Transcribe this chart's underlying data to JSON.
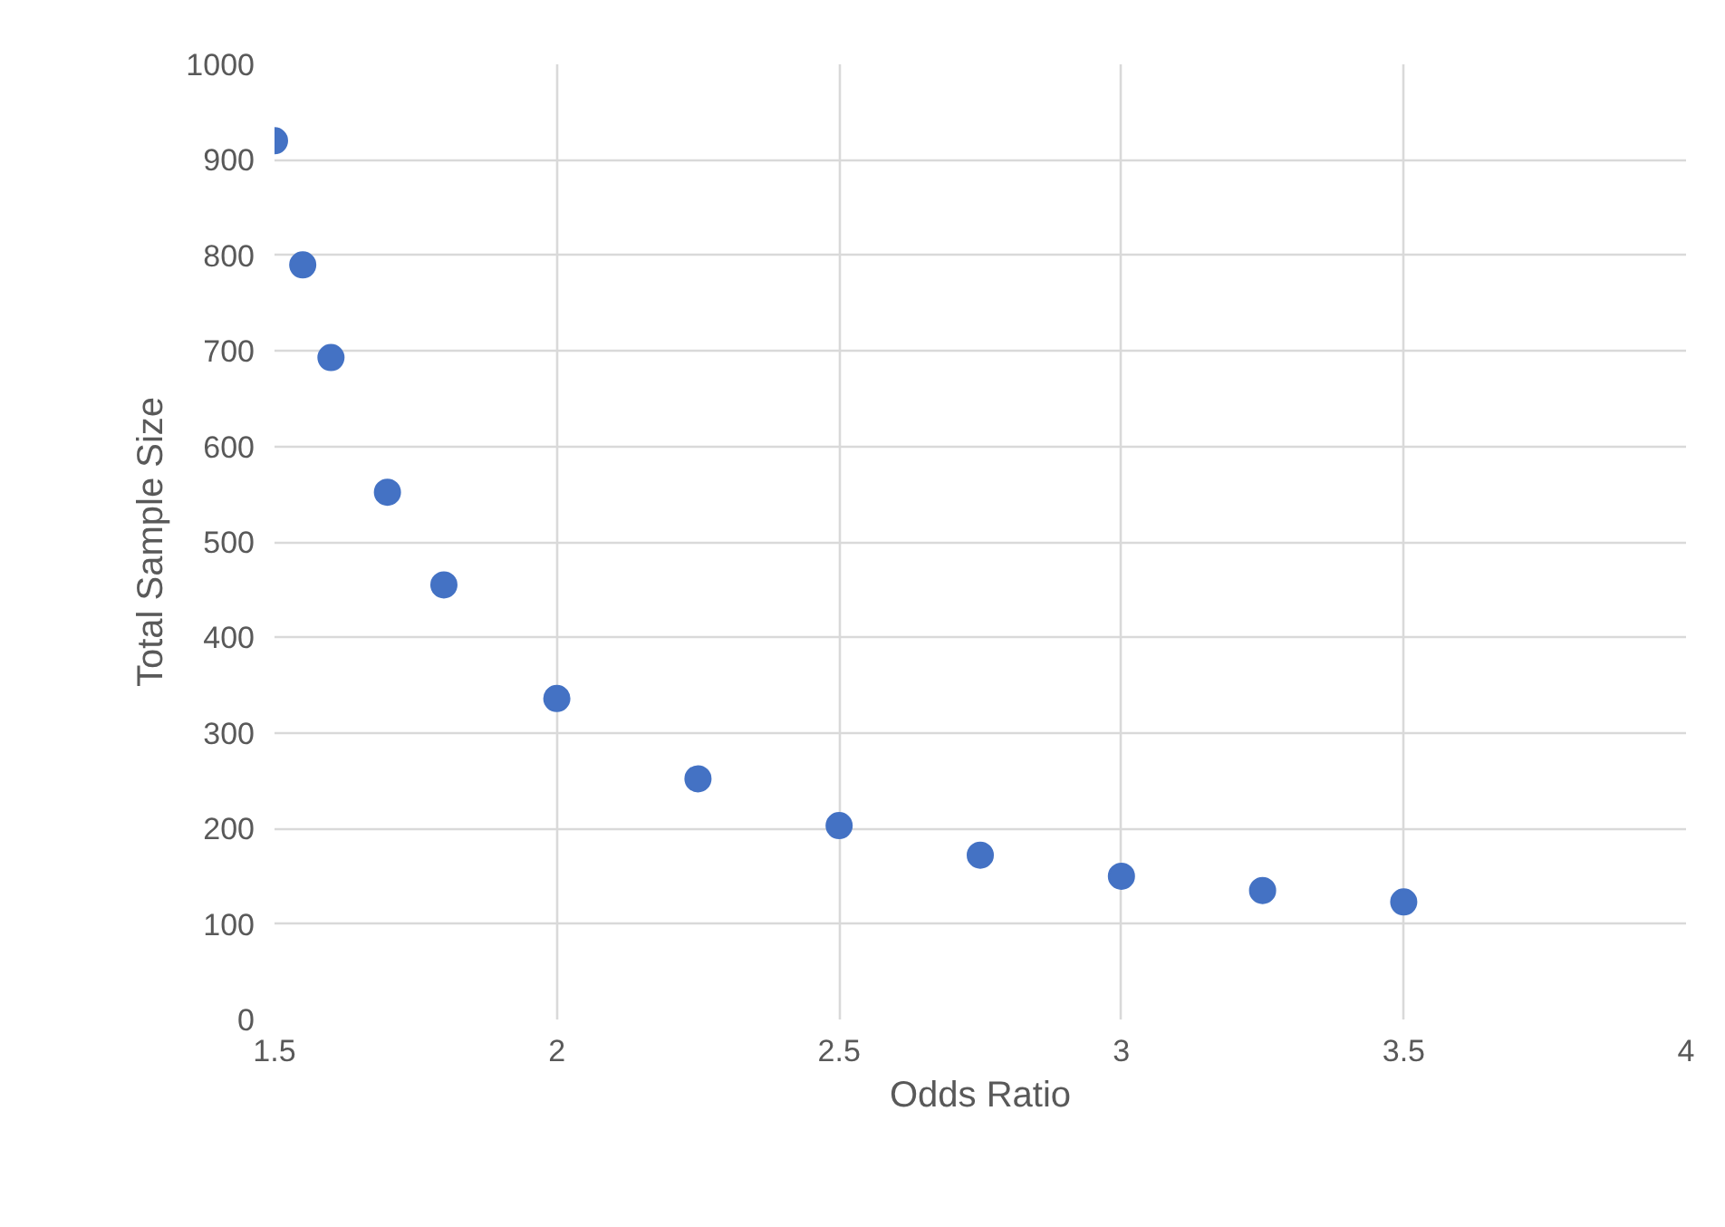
{
  "chart_data": {
    "type": "scatter",
    "xlabel": "Odds Ratio",
    "ylabel": "Total Sample Size",
    "x": [
      1.5,
      1.55,
      1.6,
      1.7,
      1.8,
      2.0,
      2.25,
      2.5,
      2.75,
      3.0,
      3.25,
      3.5
    ],
    "series": [
      {
        "color": "#4472c4",
        "values": [
          920,
          790,
          693,
          552,
          455,
          336,
          252,
          203,
          172,
          150,
          135,
          123
        ]
      }
    ],
    "xlim": [
      1.5,
      4
    ],
    "xticks": [
      1.5,
      2,
      2.5,
      3,
      3.5,
      4
    ],
    "ylim": [
      0,
      1000
    ],
    "yticks": [
      0,
      100,
      200,
      300,
      400,
      500,
      600,
      700,
      800,
      900,
      1000
    ],
    "grid": true,
    "marker": "circle"
  }
}
